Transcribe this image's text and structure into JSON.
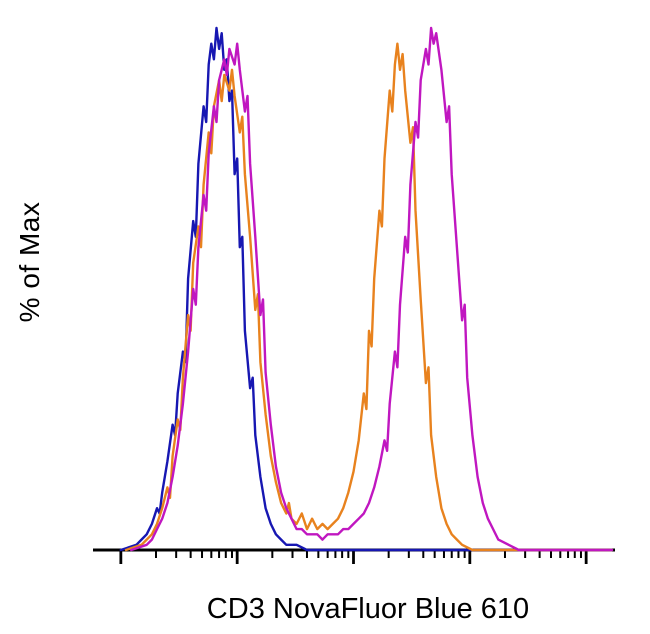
{
  "page": {
    "background": "#ffffff",
    "axis_color": "#000000"
  },
  "chart_data": {
    "type": "line",
    "chart_kind": "flow-cytometry-histogram-overlay",
    "title": "",
    "xlabel": "CD3 NovaFluor Blue 610",
    "ylabel": "% of Max",
    "ylim": [
      0,
      100
    ],
    "grid": false,
    "legend": null,
    "x_axis": {
      "scale": "log",
      "tick_labels": [],
      "major_ticks": [
        0.05,
        0.275,
        0.5,
        0.725,
        0.95
      ],
      "minor_ticks": [
        0.118,
        0.157,
        0.185,
        0.207,
        0.225,
        0.24,
        0.253,
        0.265,
        0.343,
        0.382,
        0.41,
        0.432,
        0.45,
        0.465,
        0.478,
        0.49,
        0.568,
        0.607,
        0.635,
        0.657,
        0.675,
        0.69,
        0.703,
        0.715,
        0.793,
        0.832,
        0.86,
        0.882,
        0.9,
        0.915,
        0.928,
        0.94
      ]
    },
    "series": [
      {
        "name": "blue-single-peak",
        "color": "#1717b2",
        "peaks": [
          {
            "x_fraction": 0.235,
            "height_pct": 100
          }
        ],
        "points": [
          [
            0.05,
            0
          ],
          [
            0.08,
            1
          ],
          [
            0.09,
            2
          ],
          [
            0.1,
            3
          ],
          [
            0.11,
            5
          ],
          [
            0.12,
            8
          ],
          [
            0.125,
            7
          ],
          [
            0.13,
            11
          ],
          [
            0.14,
            17
          ],
          [
            0.15,
            24
          ],
          [
            0.155,
            22
          ],
          [
            0.16,
            30
          ],
          [
            0.17,
            38
          ],
          [
            0.175,
            36
          ],
          [
            0.18,
            52
          ],
          [
            0.19,
            63
          ],
          [
            0.195,
            60
          ],
          [
            0.2,
            74
          ],
          [
            0.21,
            85
          ],
          [
            0.215,
            82
          ],
          [
            0.22,
            93
          ],
          [
            0.225,
            97
          ],
          [
            0.23,
            94
          ],
          [
            0.235,
            100
          ],
          [
            0.24,
            96
          ],
          [
            0.245,
            99
          ],
          [
            0.25,
            92
          ],
          [
            0.255,
            94
          ],
          [
            0.26,
            86
          ],
          [
            0.265,
            88
          ],
          [
            0.27,
            72
          ],
          [
            0.275,
            75
          ],
          [
            0.28,
            58
          ],
          [
            0.285,
            60
          ],
          [
            0.29,
            42
          ],
          [
            0.3,
            31
          ],
          [
            0.305,
            33
          ],
          [
            0.31,
            22
          ],
          [
            0.32,
            14
          ],
          [
            0.33,
            8
          ],
          [
            0.34,
            5
          ],
          [
            0.35,
            3
          ],
          [
            0.36,
            2
          ],
          [
            0.37,
            1
          ],
          [
            0.39,
            1
          ],
          [
            0.41,
            0
          ],
          [
            1,
            0
          ]
        ]
      },
      {
        "name": "orange-bimodal",
        "color": "#e8821e",
        "peaks": [
          {
            "x_fraction": 0.265,
            "height_pct": 92
          },
          {
            "x_fraction": 0.585,
            "height_pct": 97
          }
        ],
        "points": [
          [
            0.06,
            0
          ],
          [
            0.09,
            1
          ],
          [
            0.1,
            2
          ],
          [
            0.11,
            3
          ],
          [
            0.12,
            5
          ],
          [
            0.13,
            8
          ],
          [
            0.14,
            12
          ],
          [
            0.145,
            10
          ],
          [
            0.15,
            18
          ],
          [
            0.16,
            25
          ],
          [
            0.165,
            23
          ],
          [
            0.17,
            33
          ],
          [
            0.18,
            45
          ],
          [
            0.185,
            42
          ],
          [
            0.19,
            55
          ],
          [
            0.2,
            62
          ],
          [
            0.205,
            58
          ],
          [
            0.21,
            70
          ],
          [
            0.22,
            80
          ],
          [
            0.225,
            76
          ],
          [
            0.23,
            85
          ],
          [
            0.24,
            90
          ],
          [
            0.245,
            86
          ],
          [
            0.25,
            91
          ],
          [
            0.26,
            88
          ],
          [
            0.265,
            92
          ],
          [
            0.27,
            87
          ],
          [
            0.28,
            80
          ],
          [
            0.285,
            83
          ],
          [
            0.29,
            72
          ],
          [
            0.3,
            60
          ],
          [
            0.31,
            46
          ],
          [
            0.315,
            49
          ],
          [
            0.32,
            36
          ],
          [
            0.33,
            26
          ],
          [
            0.34,
            18
          ],
          [
            0.35,
            13
          ],
          [
            0.36,
            9
          ],
          [
            0.37,
            7
          ],
          [
            0.375,
            9
          ],
          [
            0.38,
            6
          ],
          [
            0.39,
            5
          ],
          [
            0.4,
            7
          ],
          [
            0.41,
            4
          ],
          [
            0.42,
            6
          ],
          [
            0.43,
            4
          ],
          [
            0.44,
            5
          ],
          [
            0.45,
            4
          ],
          [
            0.46,
            5
          ],
          [
            0.47,
            6
          ],
          [
            0.48,
            8
          ],
          [
            0.49,
            11
          ],
          [
            0.5,
            15
          ],
          [
            0.51,
            21
          ],
          [
            0.52,
            30
          ],
          [
            0.525,
            27
          ],
          [
            0.53,
            42
          ],
          [
            0.535,
            39
          ],
          [
            0.54,
            52
          ],
          [
            0.55,
            65
          ],
          [
            0.555,
            62
          ],
          [
            0.56,
            75
          ],
          [
            0.57,
            88
          ],
          [
            0.575,
            84
          ],
          [
            0.58,
            93
          ],
          [
            0.585,
            97
          ],
          [
            0.59,
            92
          ],
          [
            0.595,
            95
          ],
          [
            0.6,
            88
          ],
          [
            0.61,
            78
          ],
          [
            0.615,
            81
          ],
          [
            0.62,
            65
          ],
          [
            0.63,
            48
          ],
          [
            0.64,
            32
          ],
          [
            0.645,
            35
          ],
          [
            0.65,
            22
          ],
          [
            0.66,
            14
          ],
          [
            0.67,
            8
          ],
          [
            0.68,
            5
          ],
          [
            0.69,
            3
          ],
          [
            0.7,
            2
          ],
          [
            0.71,
            1
          ],
          [
            0.73,
            0
          ],
          [
            1,
            0
          ]
        ]
      },
      {
        "name": "magenta-bimodal",
        "color": "#c017c0",
        "peaks": [
          {
            "x_fraction": 0.275,
            "height_pct": 97
          },
          {
            "x_fraction": 0.65,
            "height_pct": 100
          }
        ],
        "points": [
          [
            0.07,
            0
          ],
          [
            0.1,
            1
          ],
          [
            0.11,
            2
          ],
          [
            0.12,
            4
          ],
          [
            0.13,
            6
          ],
          [
            0.14,
            9
          ],
          [
            0.15,
            14
          ],
          [
            0.16,
            20
          ],
          [
            0.17,
            28
          ],
          [
            0.18,
            38
          ],
          [
            0.19,
            50
          ],
          [
            0.195,
            47
          ],
          [
            0.2,
            58
          ],
          [
            0.21,
            68
          ],
          [
            0.215,
            65
          ],
          [
            0.22,
            76
          ],
          [
            0.23,
            85
          ],
          [
            0.235,
            82
          ],
          [
            0.24,
            90
          ],
          [
            0.25,
            94
          ],
          [
            0.255,
            91
          ],
          [
            0.26,
            96
          ],
          [
            0.27,
            93
          ],
          [
            0.275,
            97
          ],
          [
            0.28,
            92
          ],
          [
            0.29,
            84
          ],
          [
            0.295,
            87
          ],
          [
            0.3,
            74
          ],
          [
            0.31,
            60
          ],
          [
            0.32,
            45
          ],
          [
            0.325,
            48
          ],
          [
            0.33,
            34
          ],
          [
            0.34,
            24
          ],
          [
            0.35,
            16
          ],
          [
            0.36,
            11
          ],
          [
            0.37,
            8
          ],
          [
            0.38,
            6
          ],
          [
            0.39,
            4
          ],
          [
            0.4,
            4
          ],
          [
            0.41,
            3
          ],
          [
            0.42,
            3
          ],
          [
            0.43,
            3
          ],
          [
            0.44,
            2
          ],
          [
            0.45,
            3
          ],
          [
            0.46,
            3
          ],
          [
            0.47,
            3
          ],
          [
            0.48,
            4
          ],
          [
            0.49,
            4
          ],
          [
            0.5,
            5
          ],
          [
            0.51,
            6
          ],
          [
            0.52,
            7
          ],
          [
            0.53,
            9
          ],
          [
            0.54,
            12
          ],
          [
            0.55,
            16
          ],
          [
            0.56,
            21
          ],
          [
            0.565,
            19
          ],
          [
            0.57,
            28
          ],
          [
            0.58,
            38
          ],
          [
            0.585,
            35
          ],
          [
            0.59,
            47
          ],
          [
            0.6,
            60
          ],
          [
            0.605,
            57
          ],
          [
            0.61,
            70
          ],
          [
            0.62,
            82
          ],
          [
            0.625,
            79
          ],
          [
            0.63,
            90
          ],
          [
            0.64,
            96
          ],
          [
            0.645,
            93
          ],
          [
            0.65,
            100
          ],
          [
            0.655,
            97
          ],
          [
            0.66,
            99
          ],
          [
            0.67,
            92
          ],
          [
            0.68,
            82
          ],
          [
            0.685,
            85
          ],
          [
            0.69,
            72
          ],
          [
            0.7,
            58
          ],
          [
            0.71,
            44
          ],
          [
            0.715,
            47
          ],
          [
            0.72,
            33
          ],
          [
            0.73,
            22
          ],
          [
            0.74,
            14
          ],
          [
            0.75,
            9
          ],
          [
            0.76,
            6
          ],
          [
            0.77,
            4
          ],
          [
            0.78,
            2
          ],
          [
            0.8,
            1
          ],
          [
            0.82,
            0
          ],
          [
            1,
            0
          ]
        ]
      }
    ]
  }
}
